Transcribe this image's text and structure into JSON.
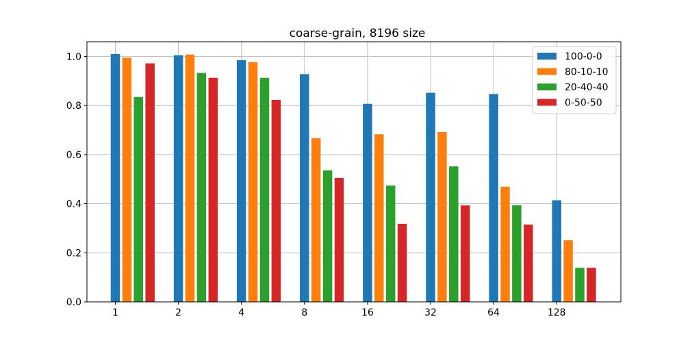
{
  "chart_data": {
    "type": "bar",
    "title": "coarse-grain, 8196 size",
    "xlabel": "",
    "ylabel": "",
    "categories": [
      "1",
      "2",
      "4",
      "8",
      "16",
      "32",
      "64",
      "128"
    ],
    "ylim": [
      0,
      1.06
    ],
    "yticks": [
      "0.0",
      "0.2",
      "0.4",
      "0.6",
      "0.8",
      "1.0"
    ],
    "grid": true,
    "legend_position": "top-right",
    "series": [
      {
        "name": "100-0-0",
        "color": "#1f77b4",
        "values": [
          1.01,
          1.005,
          0.985,
          0.928,
          0.807,
          0.852,
          0.847,
          0.414
        ]
      },
      {
        "name": "80-10-10",
        "color": "#ff7f0e",
        "values": [
          0.995,
          1.008,
          0.977,
          0.667,
          0.683,
          0.692,
          0.469,
          0.251
        ]
      },
      {
        "name": "20-40-40",
        "color": "#2ca02c",
        "values": [
          0.835,
          0.933,
          0.913,
          0.536,
          0.474,
          0.552,
          0.394,
          0.139
        ]
      },
      {
        "name": "0-50-50",
        "color": "#d62728",
        "values": [
          0.972,
          0.913,
          0.823,
          0.505,
          0.318,
          0.393,
          0.315,
          0.139
        ]
      }
    ]
  }
}
